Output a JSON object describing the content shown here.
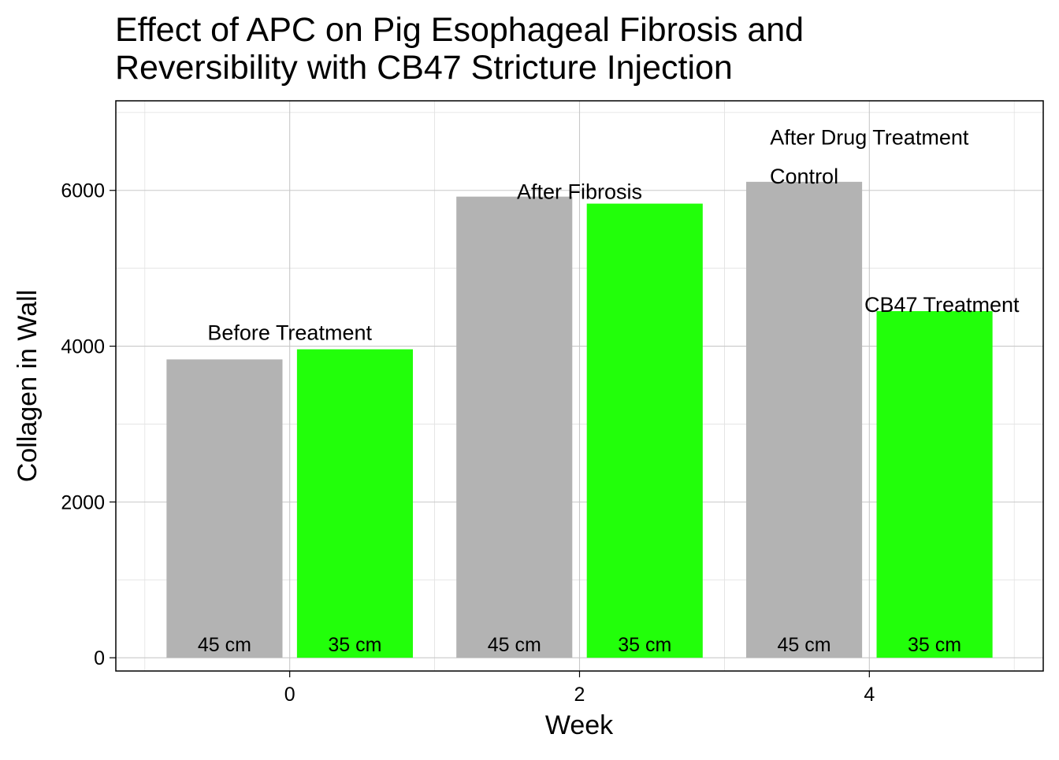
{
  "chart_data": {
    "type": "bar",
    "title": "Effect of APC on Pig Esophageal Fibrosis and Reversibility with CB47 Stricture Injection",
    "title_lines": [
      "Effect of APC on Pig Esophageal Fibrosis and",
      "Reversibility with CB47 Stricture Injection"
    ],
    "xlabel": "Week",
    "ylabel": "Collagen in Wall",
    "xlim": [
      -1.2,
      5.2
    ],
    "ylim": [
      -170,
      7150
    ],
    "x_ticks": [
      0,
      2,
      4
    ],
    "y_ticks": [
      0,
      2000,
      4000,
      6000
    ],
    "grid": true,
    "legend": "none",
    "bar_width": 0.8,
    "series": [
      {
        "label": "45 cm",
        "color": "#b3b3b3",
        "x": [
          -0.45,
          1.55,
          3.55
        ],
        "values": [
          3830,
          5920,
          6110
        ]
      },
      {
        "label": "35 cm",
        "color": "#22ff0a",
        "x": [
          0.45,
          2.45,
          4.45
        ],
        "values": [
          3960,
          5830,
          4450
        ]
      }
    ],
    "annotations": [
      {
        "text": "Before Treatment",
        "x": 0,
        "y": 4020
      },
      {
        "text": "After Fibrosis",
        "x": 2,
        "y": 5830
      },
      {
        "text": "After Drug Treatment",
        "x": 4,
        "y": 6530
      },
      {
        "text": "Control",
        "x": 3.55,
        "y": 6030
      },
      {
        "text": "CB47 Treatment",
        "x": 4.5,
        "y": 4380
      }
    ]
  }
}
